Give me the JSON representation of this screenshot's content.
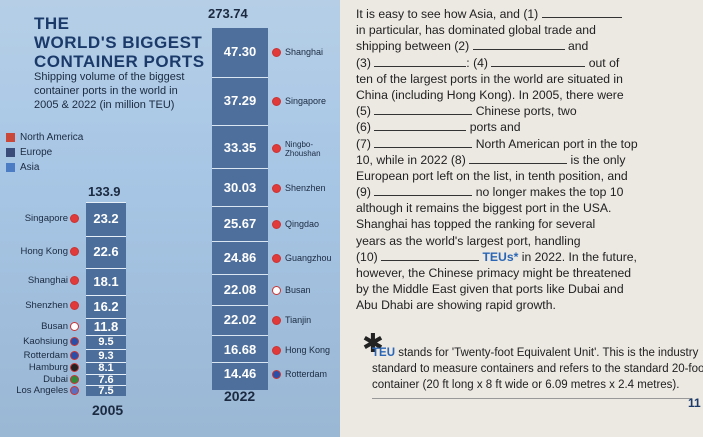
{
  "infographic": {
    "title_lines": [
      "THE",
      "WORLD'S BIGGEST",
      "CONTAINER PORTS"
    ],
    "subtitle_lines": [
      "Shipping volume of the biggest",
      "container ports in the world in",
      "2005 & 2022 (in million TEU)"
    ],
    "legend": [
      {
        "label": "North America",
        "color": "#c9483a"
      },
      {
        "label": "Europe",
        "color": "#3a4c79"
      },
      {
        "label": "Asia",
        "color": "#4c7cc4"
      }
    ],
    "col_2005": {
      "year": "2005",
      "total": "133.9",
      "ports": [
        {
          "name": "Singapore",
          "value": "23.2",
          "flag": "singapore-flag-icon",
          "color": "#e03a3a"
        },
        {
          "name": "Hong Kong",
          "value": "22.6",
          "flag": "hong-kong-flag-icon",
          "color": "#e03a3a"
        },
        {
          "name": "Shanghai",
          "value": "18.1",
          "flag": "china-flag-icon",
          "color": "#e03a3a"
        },
        {
          "name": "Shenzhen",
          "value": "16.2",
          "flag": "china-flag-icon",
          "color": "#e03a3a"
        },
        {
          "name": "Busan",
          "value": "11.8",
          "flag": "south-korea-flag-icon",
          "color": "#ffffff"
        },
        {
          "name": "Kaohsiung",
          "value": "9.5",
          "flag": "taiwan-flag-icon",
          "color": "#2a4fa8"
        },
        {
          "name": "Rotterdam",
          "value": "9.3",
          "flag": "netherlands-flag-icon",
          "color": "#2a4fa8"
        },
        {
          "name": "Hamburg",
          "value": "8.1",
          "flag": "germany-flag-icon",
          "color": "#222222"
        },
        {
          "name": "Dubai",
          "value": "7.6",
          "flag": "uae-flag-icon",
          "color": "#2f8a3a"
        },
        {
          "name": "Los Angeles",
          "value": "7.5",
          "flag": "usa-flag-icon",
          "color": "#5a6fbf"
        }
      ]
    },
    "col_2022": {
      "year": "2022",
      "total": "273.74",
      "ports": [
        {
          "name": "Shanghai",
          "value": "47.30",
          "flag": "china-flag-icon",
          "color": "#e03a3a"
        },
        {
          "name": "Singapore",
          "value": "37.29",
          "flag": "singapore-flag-icon",
          "color": "#e03a3a"
        },
        {
          "name": "Ningbo-Zhoushan",
          "value": "33.35",
          "flag": "china-flag-icon",
          "color": "#e03a3a"
        },
        {
          "name": "Shenzhen",
          "value": "30.03",
          "flag": "china-flag-icon",
          "color": "#e03a3a"
        },
        {
          "name": "Qingdao",
          "value": "25.67",
          "flag": "china-flag-icon",
          "color": "#e03a3a"
        },
        {
          "name": "Guangzhou",
          "value": "24.86",
          "flag": "china-flag-icon",
          "color": "#e03a3a"
        },
        {
          "name": "Busan",
          "value": "22.08",
          "flag": "south-korea-flag-icon",
          "color": "#ffffff"
        },
        {
          "name": "Tianjin",
          "value": "22.02",
          "flag": "china-flag-icon",
          "color": "#e03a3a"
        },
        {
          "name": "Hong Kong",
          "value": "16.68",
          "flag": "hong-kong-flag-icon",
          "color": "#e03a3a"
        },
        {
          "name": "Rotterdam",
          "value": "14.46",
          "flag": "netherlands-flag-icon",
          "color": "#2a4fa8"
        }
      ]
    }
  },
  "text": {
    "p1": [
      "It is easy to see how Asia, and (1)",
      "in particular, has dominated global trade and",
      "shipping between (2)",
      "and",
      "(3)",
      ": (4)",
      "out of",
      "ten of the largest ports in the world are situated in",
      "China (including Hong Kong). In 2005, there were",
      "(5)",
      "Chinese ports, two",
      "(6)",
      "ports and",
      "(7)",
      "North American port in the top",
      "10, while in 2022 (8)",
      "is the only",
      "European port left on the list, in tenth position, and",
      "(9)",
      "no longer makes the top 10",
      "although it remains the biggest port in the USA.",
      "Shanghai has topped the ranking for several",
      "years as the world's largest port, handling",
      "(10)",
      "TEUs*",
      " in 2022. In the future,",
      "however, the Chinese primacy might be threatened",
      "by the Middle East given that ports like Dubai and",
      "Abu Dhabi are showing rapid growth."
    ],
    "note_lead": "TEU",
    "note_lines": [
      " stands for 'Twenty-foot Equivalent Unit'. This is the industry",
      "standard to measure containers and refers to the standard 20-foot",
      "container (20 ft long x 8 ft wide or 6.09 metres x 2.4 metres)."
    ],
    "page_number": "11"
  }
}
